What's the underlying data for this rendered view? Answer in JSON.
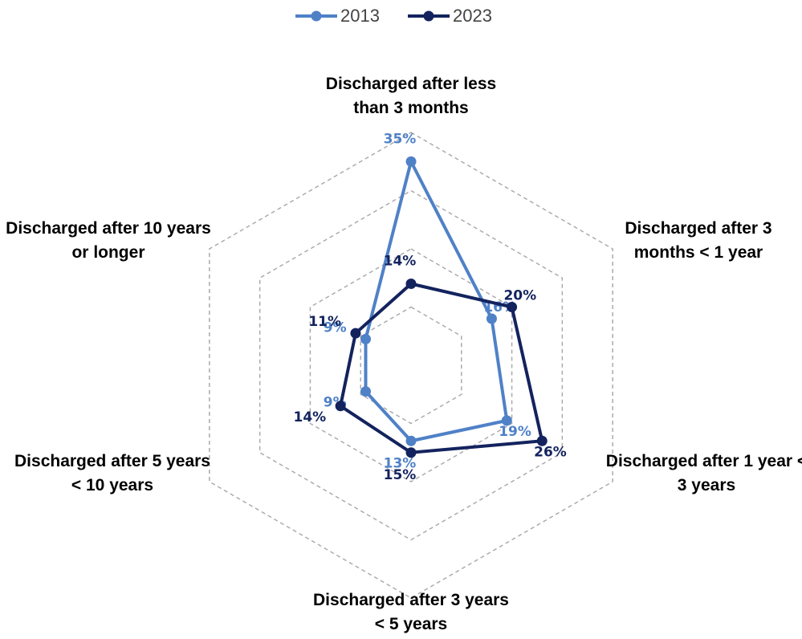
{
  "chart_data": {
    "type": "radar",
    "categories": [
      "Discharged after less than 3 months",
      "Discharged after 3 months < 1 year",
      "Discharged after 1 year < 3 years",
      "Discharged after 3 years < 5 years",
      "Discharged after 5 years < 10 years",
      "Discharged after 10 years or longer"
    ],
    "series": [
      {
        "name": "2013",
        "color": "#4f81c7",
        "values": [
          35,
          16,
          19,
          13,
          9,
          9
        ],
        "value_labels": [
          "35%",
          "16%",
          "19%",
          "13%",
          "9%",
          "9%"
        ]
      },
      {
        "name": "2023",
        "color": "#13235e",
        "values": [
          14,
          20,
          26,
          15,
          14,
          11
        ],
        "value_labels": [
          "14%",
          "20%",
          "26%",
          "15%",
          "14%",
          "11%"
        ]
      }
    ],
    "rlim": [
      0,
      40
    ],
    "rticks": [
      10,
      20,
      30,
      40
    ],
    "grid": true,
    "legend": "top"
  }
}
